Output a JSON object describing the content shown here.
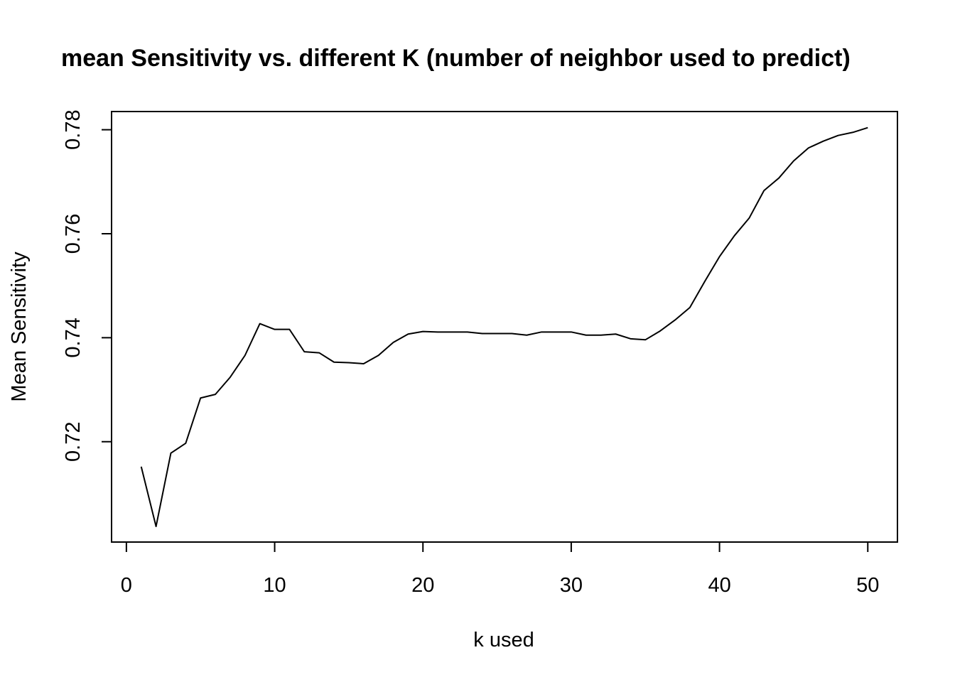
{
  "chart_data": {
    "type": "line",
    "title": "mean Sensitivity vs. different K (number of neighbor used to predict)",
    "xlabel": "k used",
    "ylabel": "Mean Sensitivity",
    "xlim": [
      -1,
      52
    ],
    "ylim": [
      0.7007,
      0.7835
    ],
    "x_ticks": [
      0,
      10,
      20,
      30,
      40,
      50
    ],
    "x_tick_labels": [
      "0",
      "10",
      "20",
      "30",
      "40",
      "50"
    ],
    "y_ticks": [
      0.72,
      0.74,
      0.76,
      0.78
    ],
    "y_tick_labels": [
      "0.72",
      "0.74",
      "0.76",
      "0.78"
    ],
    "grid": false,
    "series": [
      {
        "color": "#000000",
        "x": [
          1,
          2,
          3,
          4,
          5,
          6,
          7,
          8,
          9,
          10,
          11,
          12,
          13,
          14,
          15,
          16,
          17,
          18,
          19,
          20,
          21,
          22,
          23,
          24,
          25,
          26,
          27,
          28,
          29,
          30,
          31,
          32,
          33,
          34,
          35,
          36,
          37,
          38,
          39,
          40,
          41,
          42,
          43,
          44,
          45,
          46,
          47,
          48,
          49,
          50
        ],
        "values": [
          0.7152,
          0.7037,
          0.7178,
          0.7197,
          0.7284,
          0.7291,
          0.7324,
          0.7366,
          0.7427,
          0.7416,
          0.7416,
          0.7373,
          0.7371,
          0.7353,
          0.7352,
          0.735,
          0.7366,
          0.7391,
          0.7407,
          0.7412,
          0.7411,
          0.7411,
          0.7411,
          0.7408,
          0.7408,
          0.7408,
          0.7405,
          0.7411,
          0.7411,
          0.7411,
          0.7405,
          0.7405,
          0.7407,
          0.7398,
          0.7396,
          0.7413,
          0.7434,
          0.7458,
          0.7508,
          0.7556,
          0.7596,
          0.763,
          0.7683,
          0.7707,
          0.774,
          0.7765,
          0.7778,
          0.7789,
          0.7795,
          0.7804
        ]
      }
    ]
  }
}
